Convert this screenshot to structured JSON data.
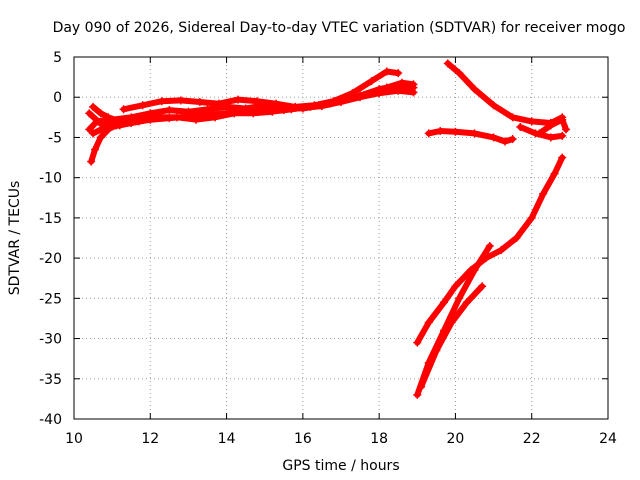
{
  "chart_data": {
    "type": "scatter",
    "title": "Day 090 of 2026, Sidereal Day-to-day VTEC variation (SDTVAR) for receiver mogo",
    "xlabel": "GPS time / hours",
    "ylabel": "SDTVAR / TECUs",
    "xlim": [
      10,
      24
    ],
    "ylim": [
      -40,
      5
    ],
    "xticks": [
      "10",
      "12",
      "14",
      "16",
      "18",
      "20",
      "22",
      "24"
    ],
    "yticks": [
      "5",
      "0",
      "-5",
      "-10",
      "-15",
      "-20",
      "-25",
      "-30",
      "-35",
      "-40"
    ],
    "grid": true,
    "color": "#ff0000",
    "marker": "plus",
    "series": [
      {
        "x": [
          10.4,
          10.6,
          11.0,
          11.5,
          12.0,
          12.5,
          13.0,
          13.5,
          14.0,
          14.5,
          15.0,
          15.5,
          16.0,
          16.5,
          17.0,
          17.5,
          18.0,
          18.5,
          18.9
        ],
        "y": [
          -4.0,
          -3.0,
          -2.8,
          -2.5,
          -2.0,
          -1.6,
          -1.8,
          -1.5,
          -1.2,
          -1.4,
          -1.0,
          -1.2,
          -1.4,
          -1.0,
          -0.5,
          0.2,
          1.0,
          1.5,
          1.2
        ]
      },
      {
        "x": [
          10.4,
          10.7,
          11.0,
          11.5,
          12.0,
          12.5,
          13.0,
          13.5,
          14.0,
          14.5,
          15.0,
          15.5,
          16.0,
          16.5,
          17.0,
          17.5,
          18.0,
          18.5,
          18.9
        ],
        "y": [
          -2.0,
          -3.3,
          -3.5,
          -3.2,
          -2.8,
          -2.6,
          -2.4,
          -2.2,
          -2.0,
          -1.8,
          -1.5,
          -1.6,
          -1.3,
          -1.1,
          -0.6,
          0.0,
          0.5,
          0.8,
          0.6
        ]
      },
      {
        "x": [
          10.5,
          10.8,
          11.2,
          11.7,
          12.2,
          12.7,
          13.2,
          13.7,
          14.2,
          14.7,
          15.2,
          15.7,
          16.2,
          16.7,
          17.2,
          17.7,
          18.2,
          18.6,
          18.9
        ],
        "y": [
          -4.5,
          -3.8,
          -3.5,
          -3.0,
          -2.5,
          -2.5,
          -2.8,
          -2.5,
          -2.0,
          -2.0,
          -1.8,
          -1.5,
          -1.2,
          -0.8,
          -0.2,
          0.4,
          1.2,
          1.8,
          1.6
        ]
      },
      {
        "x": [
          11.3,
          11.8,
          12.3,
          12.8,
          13.3,
          13.8,
          14.3,
          14.8,
          15.3,
          15.8,
          16.3,
          16.8,
          17.3,
          17.8,
          18.2,
          18.5
        ],
        "y": [
          -1.5,
          -1.0,
          -0.5,
          -0.4,
          -0.6,
          -0.8,
          -0.3,
          -0.5,
          -0.8,
          -1.2,
          -1.0,
          -0.5,
          0.5,
          2.0,
          3.2,
          3.0
        ]
      },
      {
        "x": [
          10.45,
          10.55,
          10.7,
          10.9,
          11.1
        ],
        "y": [
          -8.0,
          -6.5,
          -5.0,
          -4.0,
          -3.5
        ]
      },
      {
        "x": [
          10.5,
          10.7,
          10.9,
          11.2
        ],
        "y": [
          -1.2,
          -2.0,
          -2.5,
          -3.0
        ]
      },
      {
        "x": [
          19.8,
          20.1,
          20.5,
          21.0,
          21.5,
          22.0,
          22.5,
          22.8
        ],
        "y": [
          4.2,
          3.0,
          1.0,
          -1.0,
          -2.5,
          -3.0,
          -3.2,
          -2.5
        ]
      },
      {
        "x": [
          19.3,
          19.6,
          20.0,
          20.5,
          21.0,
          21.3,
          21.5
        ],
        "y": [
          -4.5,
          -4.2,
          -4.3,
          -4.5,
          -5.0,
          -5.5,
          -5.2
        ]
      },
      {
        "x": [
          21.7,
          22.1,
          22.5,
          22.8
        ],
        "y": [
          -3.7,
          -4.5,
          -5.0,
          -4.8
        ]
      },
      {
        "x": [
          22.2,
          22.5,
          22.8,
          22.9
        ],
        "y": [
          -4.5,
          -3.5,
          -2.8,
          -4.0
        ]
      },
      {
        "x": [
          19.0,
          19.3,
          19.7,
          20.0,
          20.4,
          20.8,
          21.2,
          21.6,
          22.0,
          22.3,
          22.6,
          22.8
        ],
        "y": [
          -30.5,
          -28.0,
          -25.5,
          -23.5,
          -21.5,
          -20.0,
          -19.0,
          -17.5,
          -15.0,
          -12.0,
          -9.5,
          -7.5
        ]
      },
      {
        "x": [
          19.0,
          19.3,
          19.7,
          20.1,
          20.5,
          20.9
        ],
        "y": [
          -37.0,
          -33.0,
          -29.0,
          -25.0,
          -21.5,
          -18.5
        ]
      },
      {
        "x": [
          19.1,
          19.5,
          19.9,
          20.3,
          20.7
        ],
        "y": [
          -36.0,
          -31.5,
          -28.0,
          -25.5,
          -23.5
        ]
      }
    ]
  }
}
